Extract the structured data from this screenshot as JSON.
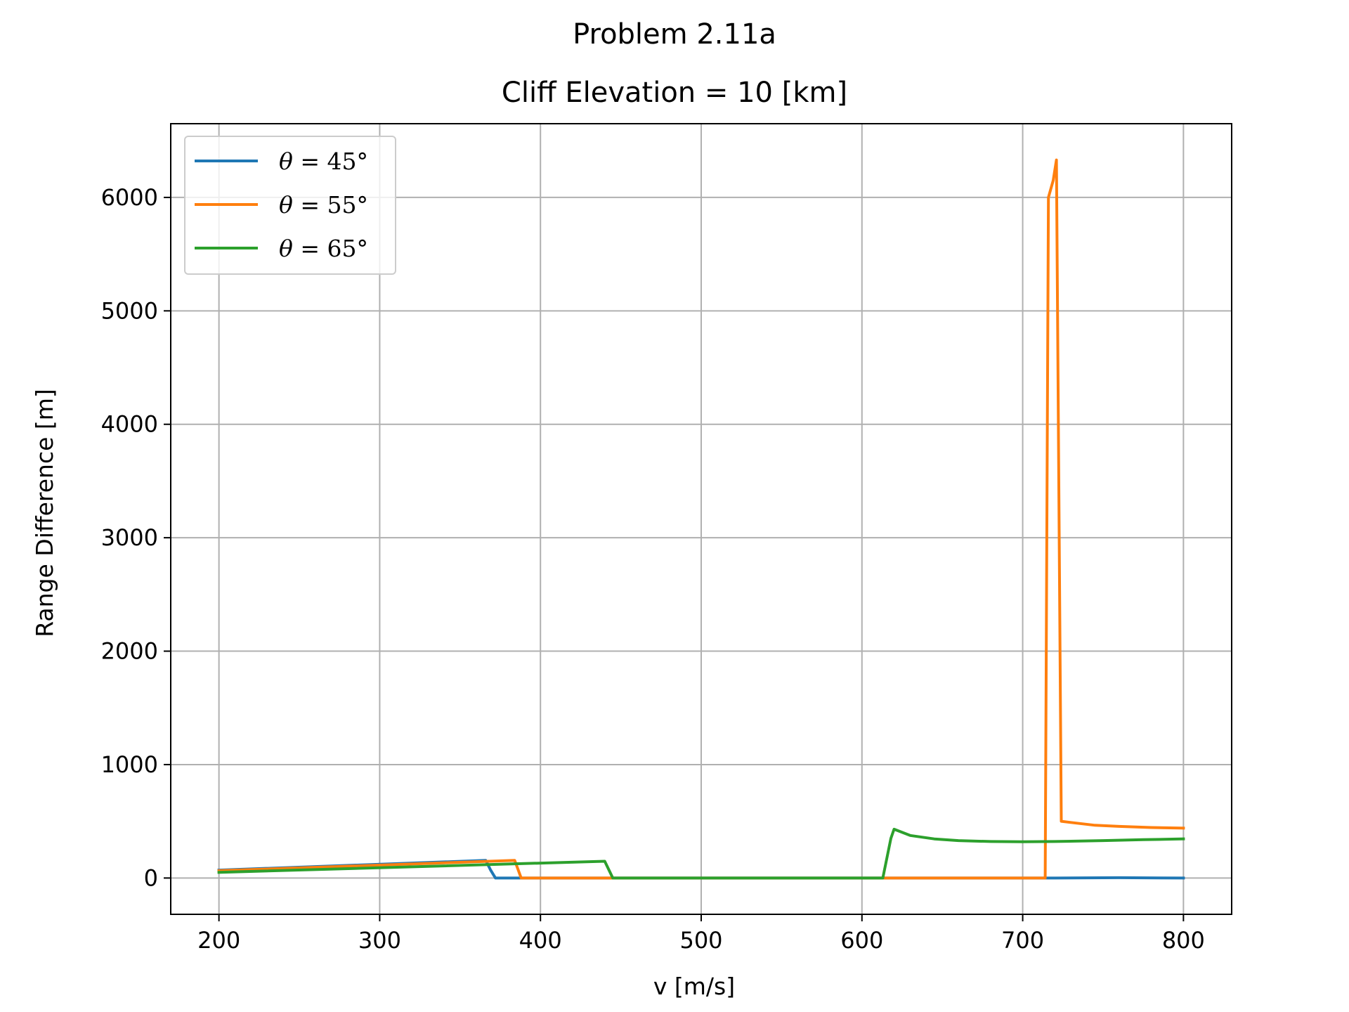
{
  "chart_data": {
    "type": "line",
    "suptitle": "Problem 2.11a",
    "title": "Cliff Elevation = 10 [km]",
    "xlabel": "v [m/s]",
    "ylabel": "Range Difference [m]",
    "xlim": [
      170,
      830
    ],
    "ylim": [
      -320,
      6650
    ],
    "xticks": [
      200,
      300,
      400,
      500,
      600,
      700,
      800
    ],
    "yticks": [
      0,
      1000,
      2000,
      3000,
      4000,
      5000,
      6000
    ],
    "xtick_labels": [
      "200",
      "300",
      "400",
      "500",
      "600",
      "700",
      "800"
    ],
    "ytick_labels": [
      "0",
      "1000",
      "2000",
      "3000",
      "4000",
      "5000",
      "6000"
    ],
    "grid": true,
    "legend_position": "upper-left",
    "series": [
      {
        "name": "θ = 45°",
        "legend_symbol": "θ",
        "legend_rest": " = 45°",
        "color": "#1f77b4",
        "points": [
          [
            200,
            70
          ],
          [
            366,
            155
          ],
          [
            369,
            70
          ],
          [
            372,
            0
          ],
          [
            712,
            0
          ],
          [
            720,
            0
          ],
          [
            760,
            3
          ],
          [
            800,
            0
          ]
        ]
      },
      {
        "name": "θ = 55°",
        "legend_symbol": "θ",
        "legend_rest": " = 55°",
        "color": "#ff7f0e",
        "points": [
          [
            200,
            65
          ],
          [
            384,
            155
          ],
          [
            388,
            0
          ],
          [
            714,
            0
          ],
          [
            716,
            6000
          ],
          [
            719,
            6150
          ],
          [
            721,
            6330
          ],
          [
            724,
            500
          ],
          [
            730,
            490
          ],
          [
            745,
            465
          ],
          [
            760,
            455
          ],
          [
            780,
            445
          ],
          [
            800,
            440
          ]
        ]
      },
      {
        "name": "θ = 65°",
        "legend_symbol": "θ",
        "legend_rest": " = 65°",
        "color": "#2ca02c",
        "points": [
          [
            200,
            50
          ],
          [
            440,
            148
          ],
          [
            445,
            0
          ],
          [
            613,
            0
          ],
          [
            618,
            350
          ],
          [
            620,
            430
          ],
          [
            630,
            375
          ],
          [
            645,
            345
          ],
          [
            660,
            330
          ],
          [
            680,
            322
          ],
          [
            700,
            320
          ],
          [
            720,
            322
          ],
          [
            750,
            330
          ],
          [
            775,
            338
          ],
          [
            800,
            345
          ]
        ]
      }
    ]
  }
}
